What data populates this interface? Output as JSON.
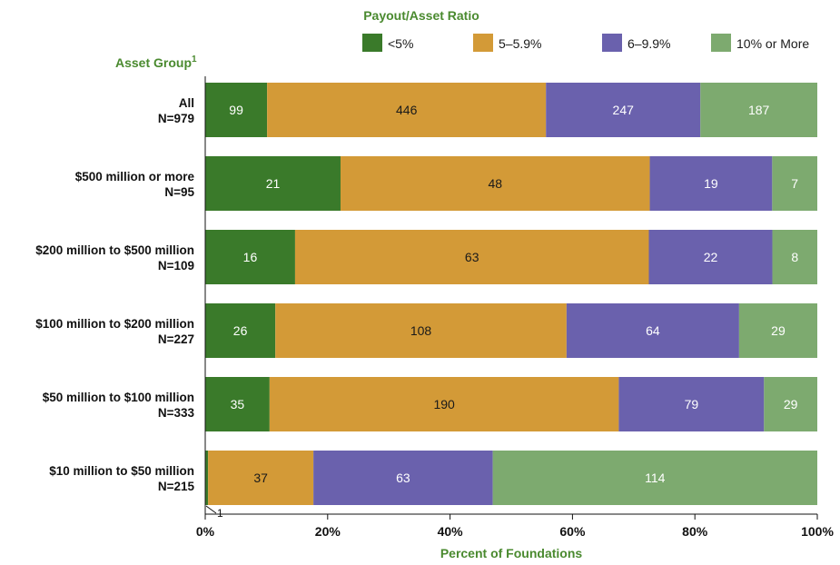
{
  "chart_data": {
    "type": "bar",
    "orientation": "horizontal",
    "stacked": "percent",
    "legend_title": "Payout/Asset Ratio",
    "y_title": "Asset Group",
    "y_title_superscript": "1",
    "xlabel": "Percent of Foundations",
    "x_ticks": [
      "0%",
      "20%",
      "40%",
      "60%",
      "80%",
      "100%"
    ],
    "xlim": [
      0,
      100
    ],
    "legend_position": "top",
    "series": [
      {
        "name": "<5%",
        "color": "#3a7a2a",
        "text_color": "#ffffff"
      },
      {
        "name": "5–5.9%",
        "color": "#d39a37",
        "text_color": "#1a1a1a"
      },
      {
        "name": "6–9.9%",
        "color": "#6a61ad",
        "text_color": "#ffffff"
      },
      {
        "name": "10% or More",
        "color": "#7daa6f",
        "text_color": "#ffffff"
      }
    ],
    "categories": [
      {
        "label": "All",
        "n": "N=979",
        "values": [
          99,
          446,
          247,
          187
        ]
      },
      {
        "label": "$500 million or more",
        "n": "N=95",
        "values": [
          21,
          48,
          19,
          7
        ]
      },
      {
        "label": "$200 million to $500 million",
        "n": "N=109",
        "values": [
          16,
          63,
          22,
          8
        ]
      },
      {
        "label": "$100 million to $200 million",
        "n": "N=227",
        "values": [
          26,
          108,
          64,
          29
        ]
      },
      {
        "label": "$50 million to $100 million",
        "n": "N=333",
        "values": [
          35,
          190,
          79,
          29
        ]
      },
      {
        "label": "$10 million to $50 million",
        "n": "N=215",
        "values": [
          1,
          37,
          63,
          114
        ]
      }
    ],
    "annotation": {
      "category_index": 5,
      "series_index": 0,
      "text": "1"
    }
  }
}
